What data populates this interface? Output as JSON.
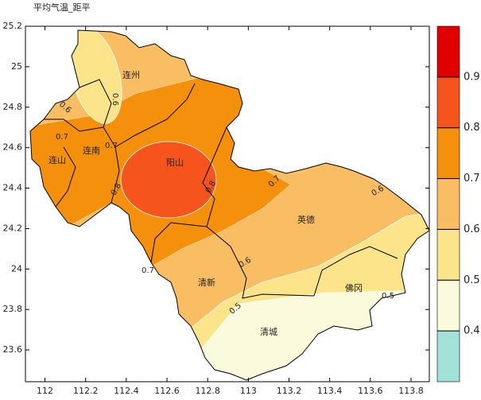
{
  "title": "平均气温_距平",
  "xlim": [
    111.904,
    113.89
  ],
  "xticks": [
    112,
    112.2,
    112.4,
    112.6,
    112.8,
    113,
    113.2,
    113.4,
    113.6,
    113.8
  ],
  "ylim": [
    23.443,
    25.2
  ],
  "yticks": [
    23.6,
    23.8,
    24,
    24.2,
    24.4,
    24.6,
    24.8,
    25,
    25.2
  ],
  "places": [
    "连州",
    "连南",
    "连山",
    "阳山",
    "英德",
    "清新",
    "佛冈",
    "清城"
  ],
  "contour_labels": [
    0.6,
    0.6,
    0.7,
    0.7,
    0.8,
    0.8,
    0.7,
    0.6,
    0.6,
    0.7,
    0.5,
    0.5
  ],
  "colorbar": {
    "range": [
      0.3,
      1.0
    ],
    "ticks": [
      0.4,
      0.5,
      0.6,
      0.7,
      0.8,
      0.9
    ],
    "colors": [
      "#a3e2d8",
      "#fafadc",
      "#fbe48a",
      "#f9be64",
      "#f5900c",
      "#f5541c",
      "#e00000"
    ]
  }
}
